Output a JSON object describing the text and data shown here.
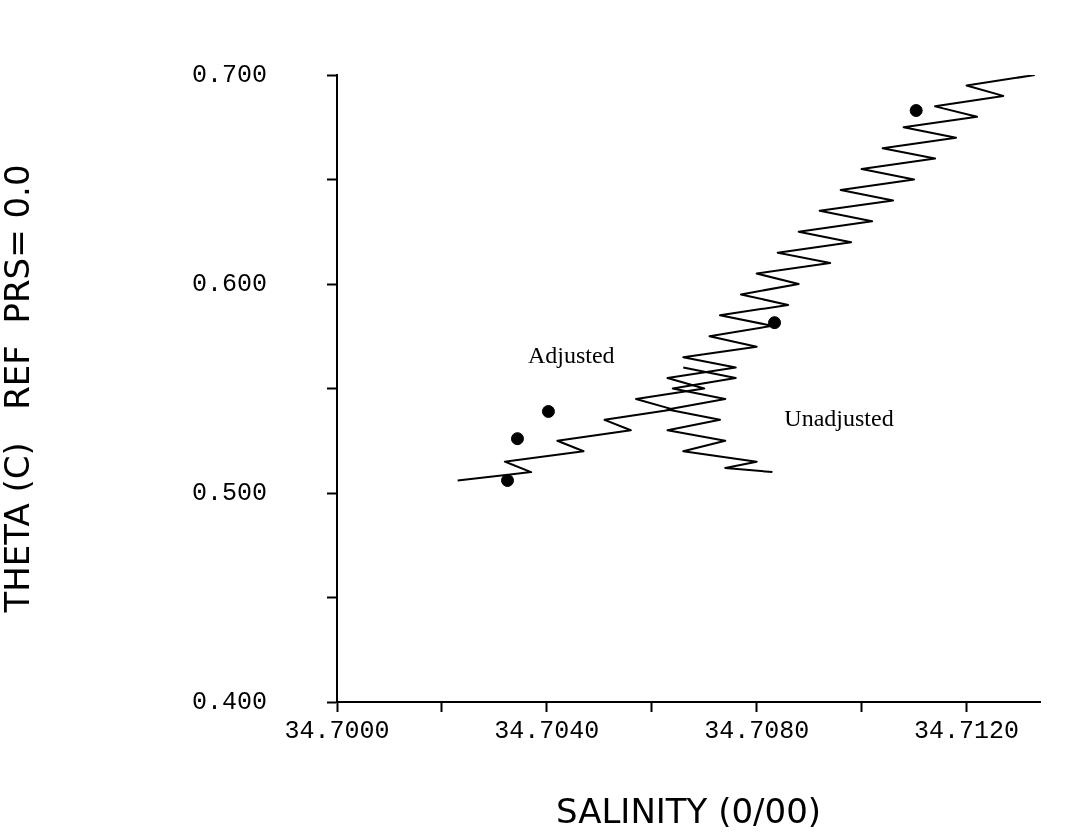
{
  "chart_data": {
    "type": "line",
    "xlabel": "SALINITY (0/00)",
    "ylabel": "THETA (C)   REF  PRS= 0.0",
    "xlim": [
      34.7,
      34.7134
    ],
    "ylim": [
      0.4,
      0.7
    ],
    "xticks": [
      {
        "value": 34.7,
        "label": "34.7000"
      },
      {
        "value": 34.702,
        "label": null
      },
      {
        "value": 34.704,
        "label": "34.7040"
      },
      {
        "value": 34.706,
        "label": null
      },
      {
        "value": 34.708,
        "label": "34.7080"
      },
      {
        "value": 34.71,
        "label": null
      },
      {
        "value": 34.712,
        "label": "34.7120"
      }
    ],
    "yticks": [
      {
        "value": 0.4,
        "label": "0.400"
      },
      {
        "value": 0.45,
        "label": null
      },
      {
        "value": 0.5,
        "label": "0.500"
      },
      {
        "value": 0.55,
        "label": null
      },
      {
        "value": 0.6,
        "label": "0.600"
      },
      {
        "value": 0.65,
        "label": null
      },
      {
        "value": 0.7,
        "label": "0.700"
      }
    ],
    "grid": false,
    "legend": false,
    "series": [
      {
        "name": "Adjusted",
        "color": "#000000",
        "marker": "none",
        "x": [
          34.7023,
          34.7037,
          34.7032,
          34.7047,
          34.7042,
          34.7056,
          34.7051,
          34.7064,
          34.7057,
          34.707,
          34.7063,
          34.7076,
          34.7066,
          34.708,
          34.7071,
          34.7083,
          34.7073,
          34.7086,
          34.7077,
          34.7088,
          34.708,
          34.7094,
          34.7084,
          34.7098,
          34.7088,
          34.7102,
          34.7092,
          34.7106,
          34.7096,
          34.711,
          34.71,
          34.7114,
          34.7104,
          34.7118,
          34.7108,
          34.7122,
          34.7114,
          34.7127,
          34.712,
          34.7133
        ],
        "values": [
          0.506,
          0.51,
          0.515,
          0.52,
          0.525,
          0.53,
          0.535,
          0.54,
          0.545,
          0.55,
          0.555,
          0.56,
          0.565,
          0.57,
          0.575,
          0.58,
          0.585,
          0.59,
          0.595,
          0.6,
          0.605,
          0.61,
          0.615,
          0.62,
          0.625,
          0.63,
          0.635,
          0.64,
          0.645,
          0.65,
          0.655,
          0.66,
          0.665,
          0.67,
          0.675,
          0.68,
          0.685,
          0.69,
          0.695,
          0.7
        ]
      },
      {
        "name": "Unadjusted",
        "color": "#000000",
        "marker": "none",
        "x": [
          34.7066,
          34.7076,
          34.7064,
          34.7074,
          34.7063,
          34.7073,
          34.7063,
          34.7074,
          34.7066,
          34.708,
          34.7074,
          34.7083
        ],
        "values": [
          0.56,
          0.555,
          0.55,
          0.545,
          0.54,
          0.535,
          0.53,
          0.525,
          0.52,
          0.515,
          0.512,
          0.51
        ]
      },
      {
        "type": "scatter",
        "color": "#000000",
        "marker": "circle",
        "x": [
          34.70325,
          34.70344,
          34.70403,
          34.70834,
          34.71104
        ],
        "values": [
          0.506,
          0.526,
          0.539,
          0.5815,
          0.683
        ]
      }
    ]
  }
}
